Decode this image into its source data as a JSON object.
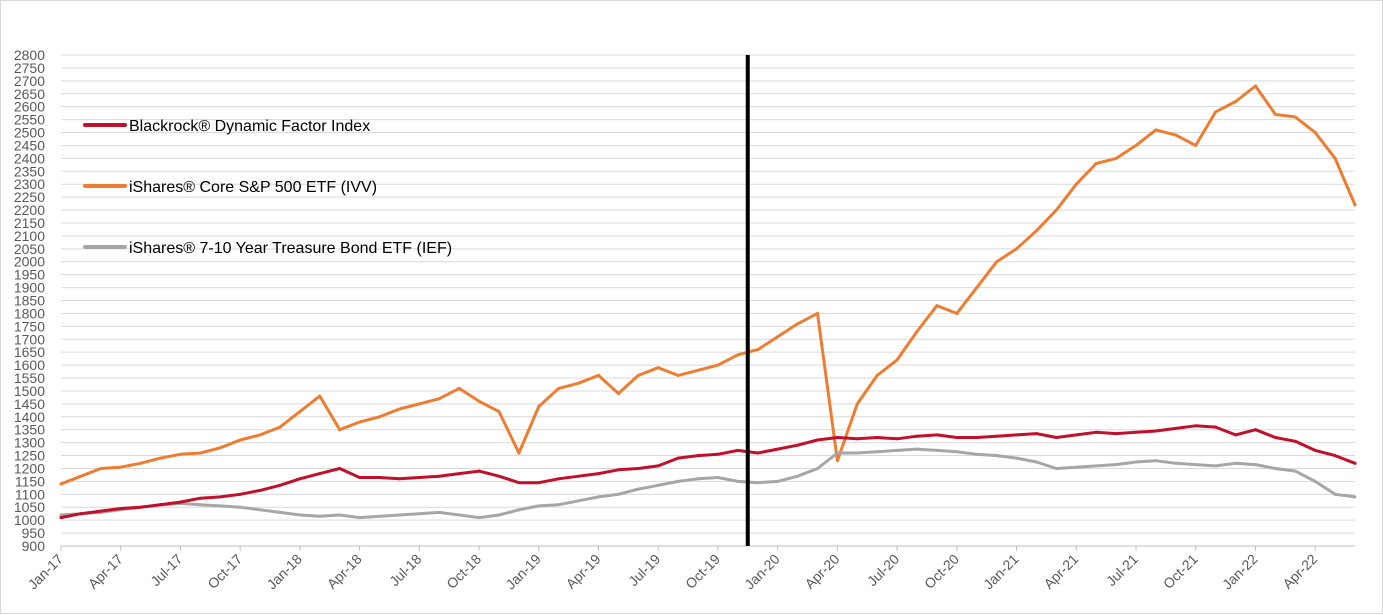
{
  "chart_data": {
    "type": "line",
    "title": "",
    "xlabel": "",
    "ylabel": "",
    "ylim": [
      900,
      2800
    ],
    "y_ticks": [
      900,
      950,
      1000,
      1050,
      1100,
      1150,
      1200,
      1250,
      1300,
      1350,
      1400,
      1450,
      1500,
      1550,
      1600,
      1650,
      1700,
      1750,
      1800,
      1850,
      1900,
      1950,
      2000,
      2050,
      2100,
      2150,
      2200,
      2250,
      2300,
      2350,
      2400,
      2450,
      2500,
      2550,
      2600,
      2650,
      2700,
      2750,
      2800
    ],
    "x_ticks": [
      "Jan-17",
      "Apr-17",
      "Jul-17",
      "Oct-17",
      "Jan-18",
      "Apr-18",
      "Jul-18",
      "Oct-18",
      "Jan-19",
      "Apr-19",
      "Jul-19",
      "Oct-19",
      "Jan-20",
      "Apr-20",
      "Jul-20",
      "Oct-20",
      "Jan-21",
      "Apr-21",
      "Jul-21",
      "Oct-21",
      "Jan-22",
      "Apr-22"
    ],
    "x_end": "Jun-22",
    "grid": "horizontal",
    "legend_position": "top-left",
    "vertical_marker_at": "Dec-19",
    "x": [
      "Jan-17",
      "Feb-17",
      "Mar-17",
      "Apr-17",
      "May-17",
      "Jun-17",
      "Jul-17",
      "Aug-17",
      "Sep-17",
      "Oct-17",
      "Nov-17",
      "Dec-17",
      "Jan-18",
      "Feb-18",
      "Mar-18",
      "Apr-18",
      "May-18",
      "Jun-18",
      "Jul-18",
      "Aug-18",
      "Sep-18",
      "Oct-18",
      "Nov-18",
      "Dec-18",
      "Jan-19",
      "Feb-19",
      "Mar-19",
      "Apr-19",
      "May-19",
      "Jun-19",
      "Jul-19",
      "Aug-19",
      "Sep-19",
      "Oct-19",
      "Nov-19",
      "Dec-19",
      "Jan-20",
      "Feb-20",
      "Mar-20",
      "Apr-20",
      "May-20",
      "Jun-20",
      "Jul-20",
      "Aug-20",
      "Sep-20",
      "Oct-20",
      "Nov-20",
      "Dec-20",
      "Jan-21",
      "Feb-21",
      "Mar-21",
      "Apr-21",
      "May-21",
      "Jun-21",
      "Jul-21",
      "Aug-21",
      "Sep-21",
      "Oct-21",
      "Nov-21",
      "Dec-21",
      "Jan-22",
      "Feb-22",
      "Mar-22",
      "Apr-22",
      "May-22",
      "Jun-22"
    ],
    "series": [
      {
        "name": "Blackrock® Dynamic Factor Index",
        "color": "#c0102b",
        "values": [
          1010,
          1025,
          1035,
          1045,
          1050,
          1060,
          1070,
          1085,
          1090,
          1100,
          1115,
          1135,
          1160,
          1180,
          1200,
          1165,
          1165,
          1160,
          1165,
          1170,
          1180,
          1190,
          1170,
          1145,
          1145,
          1160,
          1170,
          1180,
          1195,
          1200,
          1210,
          1240,
          1250,
          1255,
          1270,
          1260,
          1275,
          1290,
          1310,
          1320,
          1315,
          1320,
          1315,
          1325,
          1330,
          1320,
          1320,
          1325,
          1330,
          1335,
          1320,
          1330,
          1340,
          1335,
          1340,
          1345,
          1355,
          1365,
          1360,
          1330,
          1350,
          1320,
          1305,
          1270,
          1250,
          1220
        ]
      },
      {
        "name": "iShares® Core S&P 500 ETF (IVV)",
        "color": "#ed7d31",
        "values": [
          1140,
          1170,
          1200,
          1205,
          1220,
          1240,
          1255,
          1260,
          1280,
          1310,
          1330,
          1360,
          1420,
          1480,
          1350,
          1380,
          1400,
          1430,
          1450,
          1470,
          1510,
          1460,
          1420,
          1260,
          1440,
          1510,
          1530,
          1560,
          1490,
          1560,
          1590,
          1560,
          1580,
          1600,
          1640,
          1660,
          1710,
          1760,
          1800,
          1230,
          1450,
          1560,
          1620,
          1730,
          1830,
          1800,
          1900,
          2000,
          2050,
          2120,
          2200,
          2300,
          2380,
          2400,
          2450,
          2510,
          2490,
          2450,
          2580,
          2620,
          2680,
          2570,
          2560,
          2500,
          2400,
          2220
        ]
      },
      {
        "name": "iShares® 7-10 Year Treasure Bond ETF (IEF)",
        "color": "#a6a6a6",
        "values": [
          1020,
          1025,
          1030,
          1040,
          1050,
          1060,
          1065,
          1060,
          1055,
          1050,
          1040,
          1030,
          1020,
          1015,
          1020,
          1010,
          1015,
          1020,
          1025,
          1030,
          1020,
          1010,
          1020,
          1040,
          1055,
          1060,
          1075,
          1090,
          1100,
          1120,
          1135,
          1150,
          1160,
          1165,
          1150,
          1145,
          1150,
          1170,
          1200,
          1260,
          1260,
          1265,
          1270,
          1275,
          1270,
          1265,
          1255,
          1250,
          1240,
          1225,
          1200,
          1205,
          1210,
          1215,
          1225,
          1230,
          1220,
          1215,
          1210,
          1220,
          1215,
          1200,
          1190,
          1150,
          1100,
          1090
        ]
      }
    ]
  }
}
